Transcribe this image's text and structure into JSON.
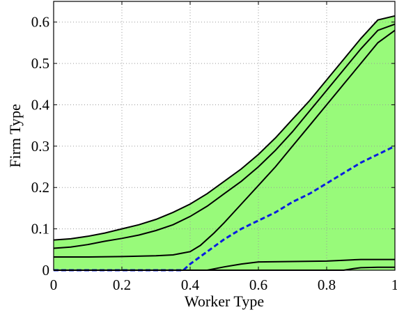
{
  "chart_data": {
    "type": "area",
    "title": "",
    "xlabel": "Worker Type",
    "ylabel": "Firm Type",
    "xlim": [
      0,
      1
    ],
    "ylim": [
      0,
      0.65
    ],
    "xticks": [
      0,
      0.2,
      0.4,
      0.6,
      0.8,
      1
    ],
    "xtick_labels": [
      "0",
      "0.2",
      "0.4",
      "0.6",
      "0.8",
      "1"
    ],
    "yticks": [
      0,
      0.1,
      0.2,
      0.3,
      0.4,
      0.5,
      0.6
    ],
    "ytick_labels": [
      "0",
      "0.1",
      "0.2",
      "0.3",
      "0.4",
      "0.5",
      "0.6"
    ],
    "grid": true,
    "fill_color": "#98fa7a",
    "series": [
      {
        "style": "solid-black",
        "x": [
          0,
          0.05,
          0.1,
          0.15,
          0.2,
          0.25,
          0.3,
          0.35,
          0.4,
          0.45,
          0.5,
          0.55,
          0.6,
          0.65,
          0.7,
          0.75,
          0.8,
          0.85,
          0.9,
          0.95,
          1.0
        ],
        "y": [
          0.073,
          0.076,
          0.082,
          0.09,
          0.1,
          0.11,
          0.123,
          0.14,
          0.16,
          0.185,
          0.215,
          0.245,
          0.28,
          0.32,
          0.365,
          0.41,
          0.46,
          0.51,
          0.56,
          0.605,
          0.615
        ]
      },
      {
        "style": "solid-black",
        "x": [
          0,
          0.05,
          0.1,
          0.15,
          0.2,
          0.25,
          0.3,
          0.35,
          0.4,
          0.45,
          0.5,
          0.55,
          0.6,
          0.65,
          0.7,
          0.75,
          0.8,
          0.85,
          0.9,
          0.95,
          1.0
        ],
        "y": [
          0.053,
          0.056,
          0.062,
          0.07,
          0.077,
          0.085,
          0.096,
          0.11,
          0.13,
          0.155,
          0.185,
          0.215,
          0.25,
          0.29,
          0.335,
          0.385,
          0.435,
          0.485,
          0.535,
          0.58,
          0.595
        ]
      },
      {
        "style": "solid-black",
        "x": [
          0,
          0.1,
          0.2,
          0.3,
          0.35,
          0.4,
          0.43,
          0.47,
          0.5,
          0.55,
          0.6,
          0.65,
          0.7,
          0.75,
          0.8,
          0.85,
          0.9,
          0.95,
          1.0
        ],
        "y": [
          0.032,
          0.032,
          0.033,
          0.035,
          0.037,
          0.045,
          0.06,
          0.09,
          0.115,
          0.16,
          0.205,
          0.25,
          0.3,
          0.35,
          0.4,
          0.45,
          0.5,
          0.55,
          0.58
        ]
      },
      {
        "style": "dashed-blue",
        "x": [
          0,
          0.1,
          0.2,
          0.3,
          0.35,
          0.38,
          0.4,
          0.45,
          0.5,
          0.55,
          0.6,
          0.65,
          0.7,
          0.75,
          0.8,
          0.85,
          0.9,
          0.95,
          1.0
        ],
        "y": [
          0,
          0,
          0,
          0,
          0,
          0,
          0.015,
          0.045,
          0.075,
          0.1,
          0.12,
          0.14,
          0.165,
          0.185,
          0.21,
          0.235,
          0.26,
          0.28,
          0.3
        ]
      },
      {
        "style": "solid-black",
        "x": [
          0,
          0.4,
          0.45,
          0.5,
          0.55,
          0.6,
          0.7,
          0.8,
          0.85,
          0.9,
          0.95,
          1.0
        ],
        "y": [
          0,
          0,
          0,
          0.008,
          0.015,
          0.02,
          0.021,
          0.022,
          0.024,
          0.026,
          0.026,
          0.026
        ]
      },
      {
        "style": "solid-black",
        "x": [
          0,
          0.8,
          0.85,
          0.88,
          0.9,
          0.95,
          1.0
        ],
        "y": [
          0,
          0,
          0,
          0.004,
          0.006,
          0.007,
          0.007
        ]
      }
    ]
  }
}
